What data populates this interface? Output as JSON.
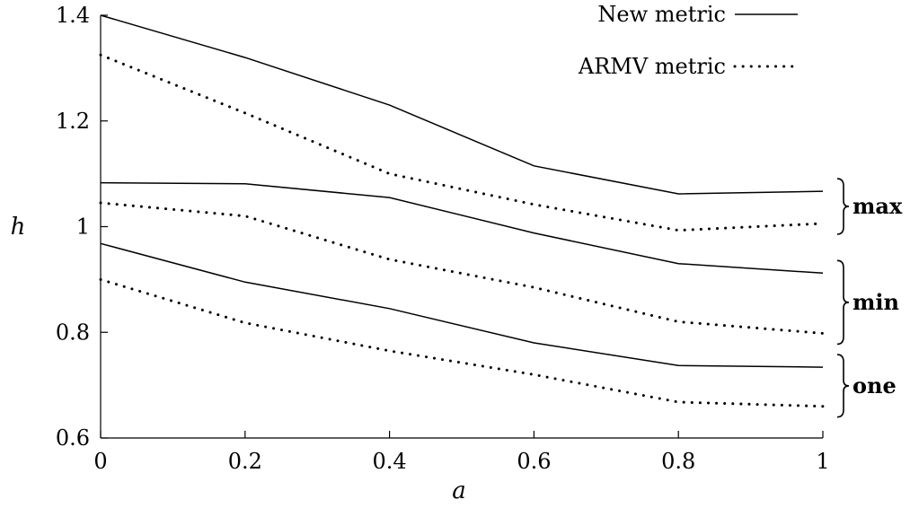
{
  "chart_data": {
    "type": "line",
    "xlabel": "a",
    "ylabel": "h",
    "xlim": [
      0,
      1
    ],
    "ylim": [
      0.6,
      1.4
    ],
    "x": [
      0,
      0.2,
      0.4,
      0.6,
      0.8,
      1
    ],
    "xticks": [
      "0",
      "0.2",
      "0.4",
      "0.6",
      "0.8",
      "1"
    ],
    "yticks": [
      "0.6",
      "0.8",
      "1",
      "1.2",
      "1.4"
    ],
    "ytick_values": [
      0.6,
      0.8,
      1.0,
      1.2,
      1.4
    ],
    "grid": false,
    "legend": [
      {
        "label": "New metric",
        "style": "solid"
      },
      {
        "label": "ARMV metric",
        "style": "dotted"
      }
    ],
    "legend_position": "top-right",
    "groups": [
      {
        "label": "max",
        "series": [
          {
            "metric": "New metric",
            "style": "solid",
            "values": [
              1.4,
              1.32,
              1.23,
              1.115,
              1.062,
              1.067
            ]
          },
          {
            "metric": "ARMV metric",
            "style": "dotted",
            "values": [
              1.325,
              1.215,
              1.1,
              1.042,
              0.993,
              1.006
            ]
          }
        ]
      },
      {
        "label": "min",
        "series": [
          {
            "metric": "New metric",
            "style": "solid",
            "values": [
              1.083,
              1.081,
              1.055,
              0.988,
              0.93,
              0.912
            ]
          },
          {
            "metric": "ARMV metric",
            "style": "dotted",
            "values": [
              1.045,
              1.02,
              0.938,
              0.885,
              0.82,
              0.798
            ]
          }
        ]
      },
      {
        "label": "one",
        "series": [
          {
            "metric": "New metric",
            "style": "solid",
            "values": [
              0.968,
              0.895,
              0.845,
              0.78,
              0.737,
              0.734
            ]
          },
          {
            "metric": "ARMV metric",
            "style": "dotted",
            "values": [
              0.9,
              0.818,
              0.765,
              0.72,
              0.668,
              0.66
            ]
          }
        ]
      }
    ]
  }
}
